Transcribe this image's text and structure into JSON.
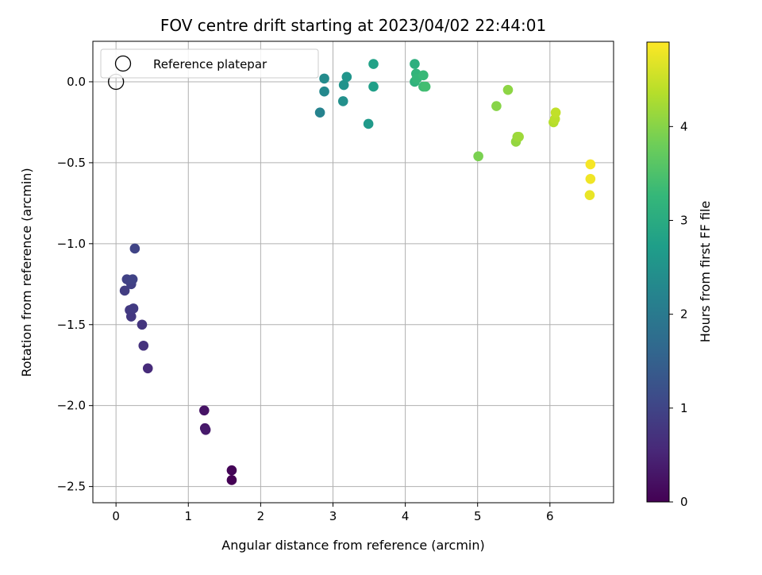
{
  "chart_data": {
    "type": "scatter",
    "title": "FOV centre drift starting at 2023/04/02 22:44:01",
    "xlabel": "Angular distance from reference (arcmin)",
    "ylabel": "Rotation from reference (arcmin)",
    "xlim": [
      -0.32,
      6.88
    ],
    "ylim": [
      -2.6,
      0.25
    ],
    "xticks": [
      0,
      1,
      2,
      3,
      4,
      5,
      6
    ],
    "yticks": [
      0.0,
      -0.5,
      -1.0,
      -1.5,
      -2.0,
      -2.5
    ],
    "xtick_labels": [
      "0",
      "1",
      "2",
      "3",
      "4",
      "5",
      "6"
    ],
    "ytick_labels": [
      "0.0",
      "−0.5",
      "−1.0",
      "−1.5",
      "−2.0",
      "−2.5"
    ],
    "grid": true,
    "legend": {
      "position": "top-left",
      "entries": [
        "Reference platepar"
      ]
    },
    "reference_point": {
      "x": 0,
      "y": 0
    },
    "colorbar": {
      "label": "Hours from first FF file",
      "range": [
        0,
        4.9
      ],
      "ticks": [
        0,
        1,
        2,
        3,
        4
      ],
      "tick_labels": [
        "0",
        "1",
        "2",
        "3",
        "4"
      ],
      "colormap": "viridis",
      "colormap_stops": [
        "#440154",
        "#482878",
        "#3e4a89",
        "#31688e",
        "#26828e",
        "#1f9e89",
        "#35b779",
        "#6ece58",
        "#b5de2b",
        "#fde725"
      ]
    },
    "series": [
      {
        "points": [
          {
            "x": 1.6,
            "y": -2.46,
            "c": 0.0
          },
          {
            "x": 1.6,
            "y": -2.4,
            "c": 0.05
          },
          {
            "x": 1.22,
            "y": -2.03,
            "c": 0.25
          },
          {
            "x": 1.23,
            "y": -2.14,
            "c": 0.3
          },
          {
            "x": 1.24,
            "y": -2.15,
            "c": 0.35
          },
          {
            "x": 0.44,
            "y": -1.77,
            "c": 0.6
          },
          {
            "x": 0.38,
            "y": -1.63,
            "c": 0.7
          },
          {
            "x": 0.36,
            "y": -1.5,
            "c": 0.75
          },
          {
            "x": 0.21,
            "y": -1.45,
            "c": 0.8
          },
          {
            "x": 0.19,
            "y": -1.41,
            "c": 0.82
          },
          {
            "x": 0.24,
            "y": -1.4,
            "c": 0.85
          },
          {
            "x": 0.12,
            "y": -1.29,
            "c": 0.88
          },
          {
            "x": 0.21,
            "y": -1.25,
            "c": 0.92
          },
          {
            "x": 0.15,
            "y": -1.22,
            "c": 0.95
          },
          {
            "x": 0.23,
            "y": -1.22,
            "c": 0.98
          },
          {
            "x": 0.26,
            "y": -1.03,
            "c": 1.0
          },
          {
            "x": 2.82,
            "y": -0.19,
            "c": 2.2
          },
          {
            "x": 2.88,
            "y": -0.06,
            "c": 2.3
          },
          {
            "x": 2.88,
            "y": 0.02,
            "c": 2.35
          },
          {
            "x": 3.14,
            "y": -0.12,
            "c": 2.45
          },
          {
            "x": 3.15,
            "y": -0.02,
            "c": 2.5
          },
          {
            "x": 3.19,
            "y": 0.03,
            "c": 2.55
          },
          {
            "x": 3.49,
            "y": -0.26,
            "c": 2.65
          },
          {
            "x": 3.56,
            "y": -0.03,
            "c": 2.75
          },
          {
            "x": 3.56,
            "y": 0.11,
            "c": 2.8
          },
          {
            "x": 4.13,
            "y": 0.11,
            "c": 3.1
          },
          {
            "x": 4.13,
            "y": 0.0,
            "c": 3.15
          },
          {
            "x": 4.15,
            "y": 0.05,
            "c": 3.2
          },
          {
            "x": 4.16,
            "y": 0.02,
            "c": 3.25
          },
          {
            "x": 4.25,
            "y": 0.04,
            "c": 3.3
          },
          {
            "x": 4.25,
            "y": -0.03,
            "c": 3.35
          },
          {
            "x": 4.28,
            "y": -0.03,
            "c": 3.4
          },
          {
            "x": 5.01,
            "y": -0.46,
            "c": 3.9
          },
          {
            "x": 5.26,
            "y": -0.15,
            "c": 4.0
          },
          {
            "x": 5.42,
            "y": -0.05,
            "c": 4.05
          },
          {
            "x": 5.53,
            "y": -0.37,
            "c": 4.1
          },
          {
            "x": 5.55,
            "y": -0.34,
            "c": 4.15
          },
          {
            "x": 5.57,
            "y": -0.34,
            "c": 4.18
          },
          {
            "x": 6.05,
            "y": -0.25,
            "c": 4.35
          },
          {
            "x": 6.07,
            "y": -0.23,
            "c": 4.4
          },
          {
            "x": 6.08,
            "y": -0.19,
            "c": 4.45
          },
          {
            "x": 6.55,
            "y": -0.7,
            "c": 4.75
          },
          {
            "x": 6.56,
            "y": -0.6,
            "c": 4.8
          },
          {
            "x": 6.56,
            "y": -0.51,
            "c": 4.85
          }
        ]
      }
    ]
  }
}
